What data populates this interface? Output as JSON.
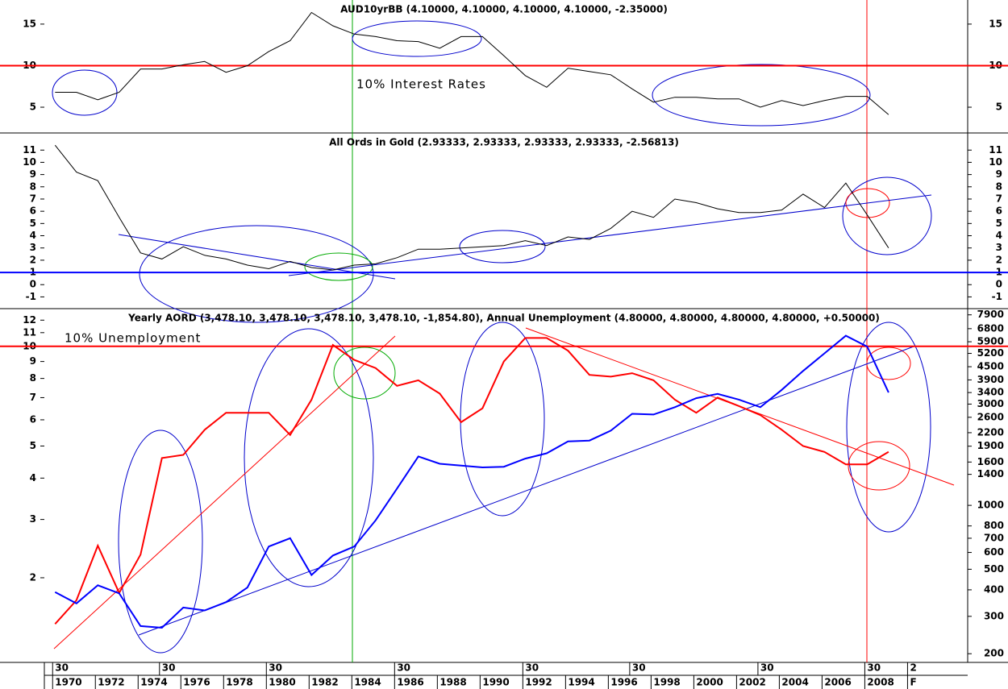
{
  "x_axis": {
    "x": [
      1970,
      1971,
      1972,
      1973,
      1974,
      1975,
      1976,
      1977,
      1978,
      1979,
      1980,
      1981,
      1982,
      1983,
      1984,
      1985,
      1986,
      1987,
      1988,
      1989,
      1990,
      1991,
      1992,
      1993,
      1994,
      1995,
      1996,
      1997,
      1998,
      1999,
      2000,
      2001,
      2002,
      2003,
      2004,
      2005,
      2006,
      2007,
      2008,
      2009
    ],
    "xlim": [
      1969.5,
      2012.7
    ],
    "xticks": [
      1970,
      1972,
      1974,
      1976,
      1978,
      1980,
      1982,
      1984,
      1986,
      1988,
      1990,
      1992,
      1994,
      1996,
      1998,
      2000,
      2002,
      2004,
      2006,
      2008,
      {
        "value": 2010,
        "label": "F"
      }
    ],
    "cycle_ticks": [
      {
        "value": 1970,
        "label": "30"
      },
      {
        "value": 1975,
        "label": "30"
      },
      {
        "value": 1980,
        "label": "30"
      },
      {
        "value": 1986,
        "label": "30"
      },
      {
        "value": 1992,
        "label": "30"
      },
      {
        "value": 1997,
        "label": "30"
      },
      {
        "value": 2003,
        "label": "30"
      },
      {
        "value": 2008,
        "label": "30"
      },
      {
        "value": 2010,
        "label": "2"
      }
    ]
  },
  "chart_data": [
    {
      "type": "line",
      "title": "AUD10yrBB (4.10000, 4.10000, 4.10000, 4.10000, -2.35000)",
      "annotation": "10% Interest Rates",
      "ylim": [
        1.9,
        17.9
      ],
      "yticks": [
        5,
        10,
        15
      ],
      "reference_line": {
        "value": 10,
        "color": "#ff0000"
      },
      "series": [
        {
          "color": "#000000",
          "values": [
            6.8,
            6.8,
            5.9,
            6.8,
            9.6,
            9.6,
            10.1,
            10.5,
            9.2,
            10.0,
            11.7,
            13.0,
            16.4,
            14.8,
            13.8,
            13.5,
            13.0,
            12.9,
            12.1,
            13.5,
            13.5,
            11.2,
            8.8,
            7.4,
            9.7,
            9.3,
            8.9,
            7.2,
            5.6,
            6.2,
            6.2,
            6.0,
            6.0,
            5.0,
            5.8,
            5.2,
            5.8,
            6.3,
            6.3,
            4.1
          ]
        }
      ]
    },
    {
      "type": "line",
      "title": "All Ords in Gold (2.93333, 2.93333, 2.93333, 2.93333, -2.56813)",
      "ylim": [
        -1.96,
        12.4
      ],
      "yticks": [
        -1,
        0,
        1,
        2,
        3,
        4,
        5,
        6,
        7,
        8,
        9,
        10,
        11
      ],
      "reference_line": {
        "value": 1,
        "color": "#0000ff"
      },
      "series": [
        {
          "color": "#000000",
          "values": [
            11.4,
            9.2,
            8.5,
            5.5,
            2.6,
            2.1,
            3.1,
            2.4,
            2.1,
            1.6,
            1.3,
            1.9,
            1.4,
            1.2,
            1.6,
            1.7,
            2.2,
            2.9,
            2.9,
            3.0,
            3.1,
            3.2,
            3.6,
            3.2,
            3.9,
            3.7,
            4.6,
            6.0,
            5.5,
            7.0,
            6.7,
            6.2,
            5.9,
            5.9,
            6.1,
            7.4,
            6.3,
            8.3,
            5.7,
            3.0
          ]
        }
      ]
    },
    {
      "type": "line",
      "title": "Yearly AORD (3,478.10, 3,478.10, 3,478.10, 3,478.10, -1,854.80), Annual Unemployment (4.80000, 4.80000, 4.80000, 4.80000, +0.50000)",
      "annotation": "10% Unemployment",
      "log_y": true,
      "ylim": [
        1.11,
        13.0
      ],
      "yticks": [
        2,
        3,
        4,
        5,
        6,
        7,
        8,
        9,
        10,
        11,
        12
      ],
      "y2lim": [
        182,
        8450
      ],
      "y2ticks": [
        200,
        300,
        400,
        500,
        600,
        700,
        800,
        1000,
        1400,
        1600,
        1900,
        2200,
        2600,
        3000,
        3400,
        3900,
        4500,
        5200,
        5900,
        6800,
        7900
      ],
      "reference_line": {
        "value": 10,
        "color": "#ff0000"
      },
      "series": [
        {
          "color": "#ff0000",
          "values": [
            1.45,
            1.71,
            2.5,
            1.8,
            2.35,
            4.6,
            4.7,
            5.6,
            6.3,
            6.3,
            6.3,
            5.4,
            6.9,
            10.1,
            9.1,
            8.6,
            7.6,
            7.9,
            7.2,
            5.9,
            6.5,
            9.0,
            10.6,
            10.6,
            9.7,
            8.2,
            8.1,
            8.3,
            7.9,
            6.9,
            6.3,
            7.0,
            6.6,
            6.2,
            5.6,
            5.0,
            4.8,
            4.4,
            4.4,
            4.8
          ]
        },
        {
          "color": "#0000ff",
          "axis": "y2",
          "values": [
            390,
            345,
            420,
            385,
            270,
            265,
            330,
            320,
            350,
            410,
            640,
            700,
            470,
            580,
            640,
            850,
            1200,
            1700,
            1570,
            1540,
            1510,
            1520,
            1660,
            1760,
            2000,
            2020,
            2250,
            2700,
            2680,
            2900,
            3200,
            3350,
            3150,
            2900,
            3500,
            4300,
            5200,
            6300,
            5600,
            3400
          ]
        }
      ]
    }
  ]
}
